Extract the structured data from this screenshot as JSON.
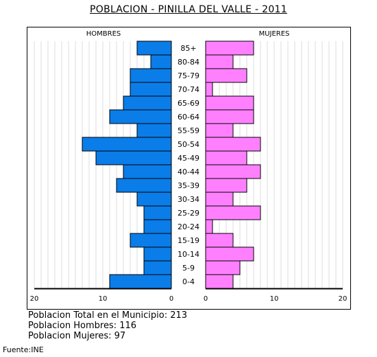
{
  "title": "POBLACION - PINILLA DEL VALLE - 2011",
  "chart_data": {
    "type": "bar",
    "orientation": "horizontal-population-pyramid",
    "categories": [
      "85+",
      "80-84",
      "75-79",
      "70-74",
      "65-69",
      "60-64",
      "55-59",
      "50-54",
      "45-49",
      "40-44",
      "35-39",
      "30-34",
      "25-29",
      "20-24",
      "15-19",
      "10-14",
      "5-9",
      "0-4"
    ],
    "series": [
      {
        "name": "HOMBRES",
        "color": "#0a7de8",
        "values": [
          5,
          3,
          6,
          6,
          7,
          9,
          5,
          13,
          11,
          7,
          8,
          5,
          4,
          4,
          6,
          4,
          4,
          9
        ]
      },
      {
        "name": "MUJERES",
        "color": "#ff80ff",
        "values": [
          7,
          4,
          6,
          1,
          7,
          7,
          4,
          8,
          6,
          8,
          6,
          4,
          8,
          1,
          4,
          7,
          5,
          4
        ]
      }
    ],
    "xlim": [
      0,
      20
    ],
    "ticks": [
      {
        "value": 20,
        "label": "20"
      },
      {
        "value": 10,
        "label": "10"
      },
      {
        "value": 0,
        "label": "0"
      }
    ],
    "grid": true
  },
  "stats": {
    "total": "Poblacion Total en el Municipio: 213",
    "hombres": "Poblacion Hombres: 116",
    "mujeres": "Poblacion Mujeres: 97"
  },
  "source": "Fuente:INE"
}
